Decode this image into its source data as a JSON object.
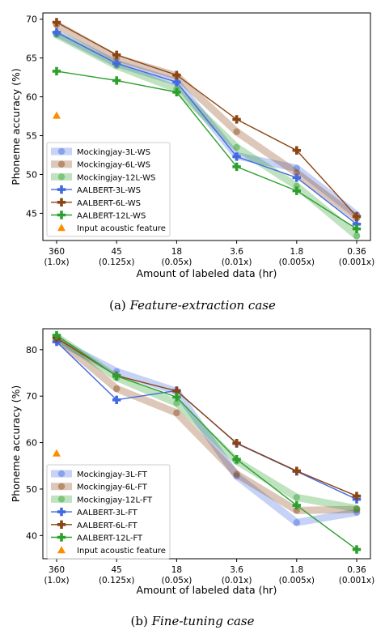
{
  "figure": {
    "captions": [
      {
        "label": "(a)",
        "text": "Feature-extraction case"
      },
      {
        "label": "(b)",
        "text": "Fine-tuning case"
      }
    ]
  },
  "chart_data": [
    {
      "type": "line",
      "ylabel": "Phoneme accuracy (%)",
      "xlabel": "Amount of labeled data (hr)",
      "categories": [
        "360",
        "45",
        "18",
        "3.6",
        "1.8",
        "0.36"
      ],
      "category_sublabels": [
        "(1.0x)",
        "(0.125x)",
        "(0.05x)",
        "(0.01x)",
        "(0.005x)",
        "(0.001x)"
      ],
      "ylim": [
        41.5,
        70.8
      ],
      "yticks": [
        45,
        50,
        55,
        60,
        65,
        70
      ],
      "legend_position": "lower left",
      "series": [
        {
          "name": "Mockingjay-3L-WS",
          "style": "band",
          "color": "#4169e1",
          "values": [
            68.2,
            64.3,
            61.9,
            52.4,
            50.8,
            44.8
          ]
        },
        {
          "name": "Mockingjay-6L-WS",
          "style": "band",
          "color": "#8b4513",
          "values": [
            69.3,
            65.0,
            62.7,
            55.5,
            50.2,
            44.4
          ]
        },
        {
          "name": "Mockingjay-12L-WS",
          "style": "band",
          "color": "#2ca02c",
          "values": [
            68.0,
            64.0,
            61.0,
            53.5,
            48.5,
            42.1
          ]
        },
        {
          "name": "AALBERT-3L-WS",
          "style": "line",
          "color": "#4169e1",
          "values": [
            68.3,
            64.3,
            61.9,
            52.3,
            49.6,
            43.6
          ]
        },
        {
          "name": "AALBERT-6L-WS",
          "style": "line",
          "color": "#8b4513",
          "values": [
            69.6,
            65.4,
            62.8,
            57.1,
            53.1,
            44.6
          ]
        },
        {
          "name": "AALBERT-12L-WS",
          "style": "line",
          "color": "#2ca02c",
          "values": [
            63.3,
            62.1,
            60.6,
            51.0,
            47.9,
            43.0
          ]
        }
      ],
      "extra_points": [
        {
          "name": "Input acoustic feature",
          "category": "360",
          "value": 57.6,
          "color": "#ff8c00"
        }
      ]
    },
    {
      "type": "line",
      "ylabel": "Phoneme accuracy (%)",
      "xlabel": "Amount of labeled data (hr)",
      "categories": [
        "360",
        "45",
        "18",
        "3.6",
        "1.8",
        "0.36"
      ],
      "category_sublabels": [
        "(1.0x)",
        "(0.125x)",
        "(0.05x)",
        "(0.01x)",
        "(0.005x)",
        "(0.001x)"
      ],
      "ylim": [
        35.0,
        84.5
      ],
      "yticks": [
        40,
        50,
        60,
        70,
        80
      ],
      "legend_position": "lower left",
      "series": [
        {
          "name": "Mockingjay-3L-FT",
          "style": "band",
          "color": "#4169e1",
          "values": [
            82.0,
            75.3,
            71.0,
            52.8,
            42.8,
            45.0
          ]
        },
        {
          "name": "Mockingjay-6L-FT",
          "style": "band",
          "color": "#8b4513",
          "values": [
            82.5,
            71.6,
            66.4,
            53.2,
            45.4,
            45.6
          ]
        },
        {
          "name": "Mockingjay-12L-FT",
          "style": "band",
          "color": "#2ca02c",
          "values": [
            82.8,
            74.0,
            68.5,
            56.0,
            48.2,
            45.8
          ]
        },
        {
          "name": "AALBERT-3L-FT",
          "style": "line",
          "color": "#4169e1",
          "values": [
            81.7,
            69.2,
            71.2,
            59.8,
            53.8,
            47.8
          ]
        },
        {
          "name": "AALBERT-6L-FT",
          "style": "line",
          "color": "#8b4513",
          "values": [
            82.5,
            74.4,
            71.1,
            59.9,
            53.9,
            48.5
          ]
        },
        {
          "name": "AALBERT-12L-FT",
          "style": "line",
          "color": "#2ca02c",
          "values": [
            83.1,
            74.3,
            69.8,
            56.4,
            46.5,
            37.0
          ]
        }
      ],
      "extra_points": [
        {
          "name": "Input acoustic feature",
          "category": "360",
          "value": 57.7,
          "color": "#ff8c00"
        }
      ]
    }
  ]
}
